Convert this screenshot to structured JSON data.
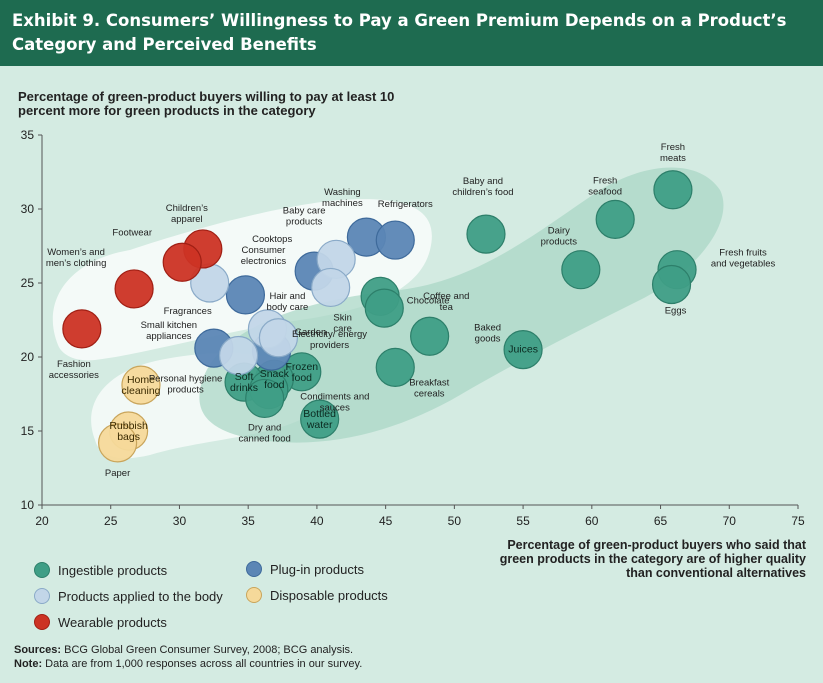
{
  "header": {
    "title": "Exhibit 9. Consumers’ Willingness to Pay a Green Premium Depends on a Product’s Category and Perceived Benefits"
  },
  "chart_data": {
    "type": "scatter",
    "ylabel": "Percentage of green-product buyers willing to pay at least 10 percent more for green products in the category",
    "xlabel": "Percentage of green-product buyers who said that green products in the category are of higher quality than conventional alternatives",
    "xlim": [
      20,
      75
    ],
    "ylim": [
      10,
      35
    ],
    "xticks": [
      20,
      25,
      30,
      35,
      40,
      45,
      50,
      55,
      60,
      65,
      70,
      75
    ],
    "yticks": [
      10,
      15,
      20,
      25,
      30,
      35
    ],
    "grid": false,
    "colors": {
      "ingestible": "#3f9e86",
      "plugin": "#5b86b5",
      "body": "#c2d6e8",
      "disposable": "#f5d99a",
      "wearable": "#cc3324"
    },
    "series": [
      {
        "name": "Ingestible products",
        "key": "ingestible",
        "points": [
          {
            "label": "Fresh meats",
            "x": 65.9,
            "y": 31.3
          },
          {
            "label": "Fresh seafood",
            "x": 61.7,
            "y": 29.3
          },
          {
            "label": "Baby and children’s food",
            "x": 52.3,
            "y": 28.3
          },
          {
            "label": "Dairy products",
            "x": 59.2,
            "y": 25.9
          },
          {
            "label": "Fresh fruits and vegetables",
            "x": 66.2,
            "y": 25.9
          },
          {
            "label": "Eggs",
            "x": 65.8,
            "y": 24.9
          },
          {
            "label": "Chocolate",
            "x": 44.6,
            "y": 24.1
          },
          {
            "label": "Coffee and tea",
            "x": 44.9,
            "y": 23.3
          },
          {
            "label": "Baked goods",
            "x": 48.2,
            "y": 21.4
          },
          {
            "label": "Juices",
            "x": 55.0,
            "y": 20.5
          },
          {
            "label": "Breakfast cereals",
            "x": 45.7,
            "y": 19.3
          },
          {
            "label": "Frozen food",
            "x": 38.9,
            "y": 19.0
          },
          {
            "label": "Snack food",
            "x": 36.9,
            "y": 18.5
          },
          {
            "label": "Soft drinks",
            "x": 34.7,
            "y": 18.3
          },
          {
            "label": "Condiments and sauces",
            "x": 36.5,
            "y": 17.8
          },
          {
            "label": "Dry and canned food",
            "x": 36.2,
            "y": 17.2
          },
          {
            "label": "Bottled water",
            "x": 40.2,
            "y": 15.8
          }
        ]
      },
      {
        "name": "Plug-in products",
        "key": "plugin",
        "points": [
          {
            "label": "Washing machines",
            "x": 43.6,
            "y": 28.1
          },
          {
            "label": "Refrigerators",
            "x": 45.7,
            "y": 27.9
          },
          {
            "label": "Cooktops",
            "x": 39.8,
            "y": 25.8
          },
          {
            "label": "Consumer electronics",
            "x": 34.8,
            "y": 24.2
          },
          {
            "label": "Small kitchen appliances",
            "x": 32.5,
            "y": 20.6
          },
          {
            "label": "Electricity/ energy providers",
            "x": 36.7,
            "y": 20.4
          }
        ]
      },
      {
        "name": "Products applied to the body",
        "key": "body",
        "points": [
          {
            "label": "Baby care products",
            "x": 41.4,
            "y": 26.6
          },
          {
            "label": "Fragrances",
            "x": 32.2,
            "y": 25.0
          },
          {
            "label": "Skin care",
            "x": 41.0,
            "y": 24.7
          },
          {
            "label": "Hair and body care",
            "x": 36.4,
            "y": 21.9
          },
          {
            "label": "Garden",
            "x": 37.2,
            "y": 21.3
          },
          {
            "label": "Personal hygiene products",
            "x": 34.3,
            "y": 20.1
          }
        ]
      },
      {
        "name": "Disposable products",
        "key": "disposable",
        "points": [
          {
            "label": "Home cleaning",
            "x": 27.2,
            "y": 18.1
          },
          {
            "label": "Rubbish bags",
            "x": 26.3,
            "y": 15.0
          },
          {
            "label": "Paper",
            "x": 25.5,
            "y": 14.2
          }
        ]
      },
      {
        "name": "Wearable products",
        "key": "wearable",
        "points": [
          {
            "label": "Children’s apparel",
            "x": 31.7,
            "y": 27.3
          },
          {
            "label": "Footwear",
            "x": 30.2,
            "y": 26.4
          },
          {
            "label": "Women’s and men’s clothing",
            "x": 26.7,
            "y": 24.6
          },
          {
            "label": "Fashion accessories",
            "x": 22.9,
            "y": 21.9
          }
        ]
      }
    ]
  },
  "legend": {
    "ingestible": "Ingestible products",
    "plugin": "Plug-in products",
    "body": "Products applied to the body",
    "disposable": "Disposable products",
    "wearable": "Wearable products"
  },
  "footer": {
    "sources_label": "Sources:",
    "sources_text": "BCG Global Green Consumer Survey, 2008; BCG analysis.",
    "note_label": "Note:",
    "note_text": "Data are from 1,000 responses across all countries in our survey."
  }
}
